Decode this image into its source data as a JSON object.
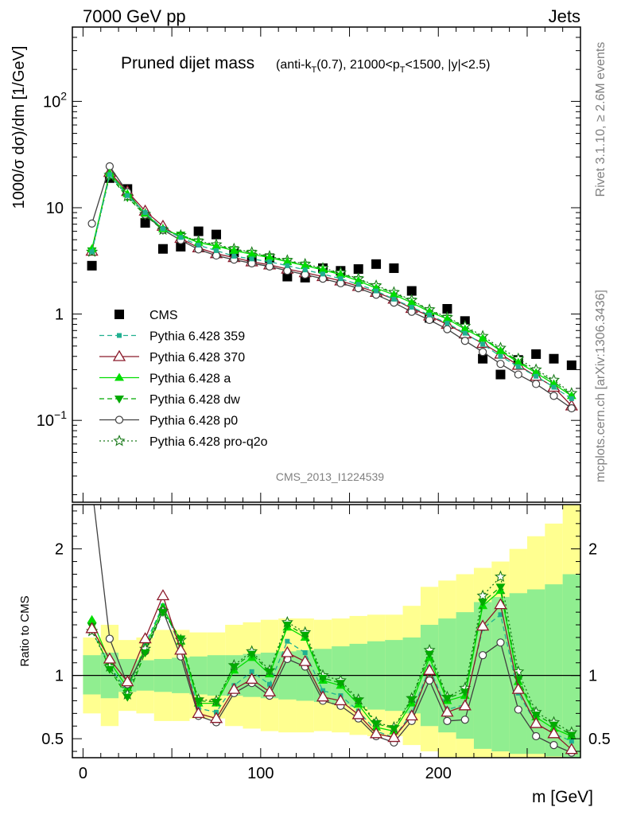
{
  "header": {
    "left": "7000 GeV pp",
    "right": "Jets"
  },
  "side_labels": {
    "rivet": "Rivet 3.1.10, ≥ 2.6M events",
    "mcplots": "mcplots.cern.ch [arXiv:1306.3436]"
  },
  "chart_data": [
    {
      "type": "line",
      "title": "Pruned dijet mass",
      "subtitle": "(anti-k_T(0.7), 21000<p_T<1500, |y|<2.5)",
      "watermark": "CMS_2013_I1224539",
      "ylabel": "1000/σ dσ)/dm [1/GeV]",
      "yscale": "log",
      "xlim": [
        -6,
        280
      ],
      "ylim": [
        0.017,
        500
      ],
      "y_tick_labels": [
        "10^-1",
        "1",
        "10",
        "10^2"
      ],
      "legend_position": "middle-left",
      "x": [
        5,
        15,
        25,
        35,
        45,
        55,
        65,
        75,
        85,
        95,
        105,
        115,
        125,
        135,
        145,
        155,
        165,
        175,
        185,
        195,
        205,
        215,
        225,
        235,
        245,
        255,
        265,
        275
      ],
      "series": [
        {
          "name": "CMS",
          "color": "#000000",
          "marker": "square",
          "values": [
            2.85,
            19.0,
            15.0,
            7.2,
            4.1,
            4.3,
            6.0,
            5.6,
            3.8,
            3.2,
            3.35,
            2.25,
            2.2,
            2.7,
            2.55,
            2.65,
            2.95,
            2.7,
            1.65,
            0.92,
            1.12,
            0.86,
            0.38,
            0.27,
            0.37,
            0.42,
            0.38,
            0.33
          ]
        },
        {
          "name": "Pythia 6.428 359",
          "color": "#20b090",
          "marker": "small-square",
          "line": "dashed",
          "values": [
            3.85,
            20.5,
            13.0,
            9.0,
            6.35,
            5.25,
            4.45,
            3.95,
            3.5,
            3.3,
            3.1,
            2.85,
            2.6,
            2.38,
            2.15,
            1.9,
            1.65,
            1.38,
            1.16,
            0.98,
            0.82,
            0.66,
            0.52,
            0.4,
            0.32,
            0.26,
            0.205,
            0.16
          ]
        },
        {
          "name": "Pythia 6.428 370",
          "color": "#8b1a2b",
          "marker": "open-triangle",
          "line": "solid",
          "values": [
            3.9,
            21.5,
            14.2,
            9.3,
            6.7,
            5.15,
            4.2,
            3.7,
            3.4,
            3.1,
            2.9,
            2.65,
            2.45,
            2.25,
            2.05,
            1.82,
            1.6,
            1.38,
            1.13,
            0.96,
            0.8,
            0.65,
            0.53,
            0.42,
            0.33,
            0.26,
            0.205,
            0.137
          ]
        },
        {
          "name": "Pythia 6.428 a",
          "color": "#00dd00",
          "marker": "triangle",
          "line": "solid",
          "values": [
            4.1,
            21.0,
            13.5,
            8.8,
            6.3,
            5.45,
            4.7,
            4.35,
            3.95,
            3.65,
            3.4,
            3.1,
            2.85,
            2.6,
            2.35,
            2.05,
            1.75,
            1.52,
            1.28,
            1.05,
            0.9,
            0.72,
            0.59,
            0.45,
            0.35,
            0.28,
            0.22,
            0.17
          ]
        },
        {
          "name": "Pythia 6.428 dw",
          "color": "#00aa00",
          "marker": "inverted-triangle",
          "line": "dashed",
          "values": [
            3.95,
            20.0,
            12.5,
            8.5,
            6.15,
            5.55,
            4.8,
            4.4,
            4.05,
            3.75,
            3.45,
            3.15,
            2.9,
            2.65,
            2.4,
            2.12,
            1.82,
            1.57,
            1.33,
            1.08,
            0.92,
            0.75,
            0.6,
            0.46,
            0.36,
            0.29,
            0.23,
            0.175
          ]
        },
        {
          "name": "Pythia 6.428 p0",
          "color": "#404040",
          "marker": "open-circle",
          "line": "solid",
          "values": [
            7.1,
            24.5,
            14.0,
            8.6,
            6.2,
            4.95,
            4.05,
            3.55,
            3.25,
            3.0,
            2.8,
            2.55,
            2.35,
            2.15,
            1.95,
            1.75,
            1.52,
            1.28,
            1.05,
            0.88,
            0.72,
            0.56,
            0.44,
            0.34,
            0.27,
            0.22,
            0.17,
            0.13
          ]
        },
        {
          "name": "Pythia 6.428 pro-q2o",
          "color": "#1a7a1a",
          "marker": "open-star",
          "line": "dotted",
          "values": [
            3.85,
            20.3,
            12.8,
            8.7,
            6.2,
            5.5,
            4.85,
            4.5,
            4.1,
            3.8,
            3.5,
            3.2,
            2.95,
            2.7,
            2.45,
            2.15,
            1.85,
            1.6,
            1.35,
            1.1,
            0.93,
            0.77,
            0.62,
            0.48,
            0.38,
            0.3,
            0.24,
            0.18
          ]
        }
      ]
    },
    {
      "type": "line",
      "ylabel": "Ratio to CMS",
      "xlabel": "m [GeV]",
      "ylim": [
        0.35,
        2.35
      ],
      "x_tick_labels": [
        "0",
        "100",
        "200"
      ],
      "y_tick_labels": [
        "0.5",
        "1",
        "2"
      ],
      "reference_line": 1,
      "bands": {
        "edges": [
          0,
          10,
          20,
          30,
          40,
          50,
          60,
          70,
          80,
          90,
          100,
          110,
          120,
          130,
          140,
          150,
          160,
          170,
          180,
          190,
          200,
          210,
          220,
          230,
          240,
          250,
          260,
          270,
          280
        ],
        "stat_color": "#90ee90",
        "syst_color": "#ffff90",
        "stat_lo": [
          0.85,
          0.82,
          0.87,
          0.88,
          0.87,
          0.86,
          0.85,
          0.84,
          0.84,
          0.83,
          0.82,
          0.81,
          0.8,
          0.79,
          0.77,
          0.75,
          0.73,
          0.72,
          0.7,
          0.6,
          0.55,
          0.5,
          0.42,
          0.4,
          0.38,
          0.38,
          0.36,
          0.35
        ],
        "stat_hi": [
          1.16,
          1.18,
          1.13,
          1.12,
          1.13,
          1.14,
          1.15,
          1.16,
          1.16,
          1.17,
          1.18,
          1.19,
          1.2,
          1.21,
          1.23,
          1.25,
          1.27,
          1.28,
          1.3,
          1.4,
          1.45,
          1.5,
          1.58,
          1.62,
          1.65,
          1.68,
          1.72,
          1.8
        ],
        "syst_lo": [
          0.7,
          0.6,
          0.72,
          0.7,
          0.64,
          0.64,
          0.66,
          0.66,
          0.6,
          0.58,
          0.56,
          0.55,
          0.55,
          0.56,
          0.55,
          0.53,
          0.52,
          0.52,
          0.45,
          0.4,
          0.35,
          0.35,
          0.35,
          0.35,
          0.35,
          0.35,
          0.35,
          0.35
        ],
        "syst_hi": [
          1.3,
          1.4,
          1.28,
          1.3,
          1.36,
          1.36,
          1.34,
          1.34,
          1.4,
          1.42,
          1.44,
          1.45,
          1.45,
          1.44,
          1.45,
          1.47,
          1.48,
          1.48,
          1.55,
          1.7,
          1.75,
          1.8,
          1.85,
          1.9,
          2.0,
          2.1,
          2.2,
          2.35
        ]
      },
      "series": [
        {
          "name": "Pythia 6.428 359",
          "values": [
            1.35,
            1.08,
            0.87,
            1.25,
            1.55,
            1.22,
            0.74,
            0.71,
            0.92,
            1.03,
            0.93,
            1.27,
            1.18,
            0.88,
            0.84,
            0.72,
            0.56,
            0.51,
            0.7,
            1.06,
            0.73,
            0.77,
            1.37,
            1.48,
            0.86,
            0.62,
            0.54,
            0.48
          ]
        },
        {
          "name": "Pythia 6.428 370",
          "values": [
            1.37,
            1.13,
            0.95,
            1.29,
            1.63,
            1.2,
            0.7,
            0.66,
            0.89,
            0.97,
            0.87,
            1.18,
            1.11,
            0.83,
            0.8,
            0.69,
            0.54,
            0.51,
            0.68,
            1.04,
            0.71,
            0.76,
            1.39,
            1.56,
            0.89,
            0.62,
            0.54,
            0.415
          ]
        },
        {
          "name": "Pythia 6.428 a",
          "values": [
            1.44,
            1.11,
            0.9,
            1.22,
            1.54,
            1.27,
            0.78,
            0.78,
            1.04,
            1.14,
            1.01,
            1.38,
            1.3,
            0.96,
            0.92,
            0.77,
            0.59,
            0.56,
            0.78,
            1.14,
            0.8,
            0.84,
            1.55,
            1.67,
            0.95,
            0.67,
            0.58,
            0.52
          ]
        },
        {
          "name": "Pythia 6.428 dw",
          "values": [
            1.39,
            1.05,
            0.83,
            1.18,
            1.5,
            1.29,
            0.8,
            0.79,
            1.07,
            1.17,
            1.03,
            1.4,
            1.32,
            0.98,
            0.94,
            0.8,
            0.62,
            0.58,
            0.81,
            1.17,
            0.82,
            0.87,
            1.58,
            1.7,
            0.97,
            0.69,
            0.61,
            0.53
          ]
        },
        {
          "name": "Pythia 6.428 p0",
          "values": [
            2.49,
            1.29,
            0.93,
            1.19,
            1.51,
            1.15,
            0.68,
            0.63,
            0.86,
            0.94,
            0.84,
            1.13,
            1.07,
            0.8,
            0.76,
            0.66,
            0.52,
            0.47,
            0.64,
            0.96,
            0.64,
            0.65,
            1.16,
            1.26,
            0.73,
            0.52,
            0.45,
            0.39
          ]
        },
        {
          "name": "Pythia 6.428 pro-q2o",
          "values": [
            1.35,
            1.07,
            0.85,
            1.21,
            1.51,
            1.28,
            0.81,
            0.8,
            1.08,
            1.19,
            1.04,
            1.42,
            1.34,
            1.0,
            0.96,
            0.81,
            0.63,
            0.59,
            0.82,
            1.2,
            0.83,
            0.9,
            1.63,
            1.78,
            1.03,
            0.71,
            0.63,
            0.55
          ]
        }
      ]
    }
  ]
}
